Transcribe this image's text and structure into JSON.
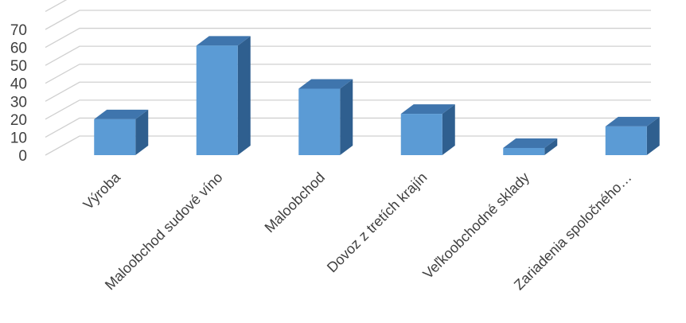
{
  "chart_data": {
    "type": "bar",
    "style": "3d-column",
    "categories": [
      "Výroba",
      "Maloobchod sudové víno",
      "Maloobchod",
      "Dovoz z tretích krajín",
      "Veľkoobchodné sklady",
      "Zariadenia spoločného…"
    ],
    "values": [
      20,
      61,
      37,
      23,
      4,
      16
    ],
    "ylim": [
      0,
      70
    ],
    "yticks": [
      0,
      10,
      20,
      30,
      40,
      50,
      60,
      70
    ],
    "grid": true,
    "legend": "none",
    "colors": {
      "front": "#5b9bd5",
      "top": "#3f75ad",
      "side": "#2f5f8f",
      "grid": "#d0d0d0",
      "text": "#404040"
    }
  }
}
